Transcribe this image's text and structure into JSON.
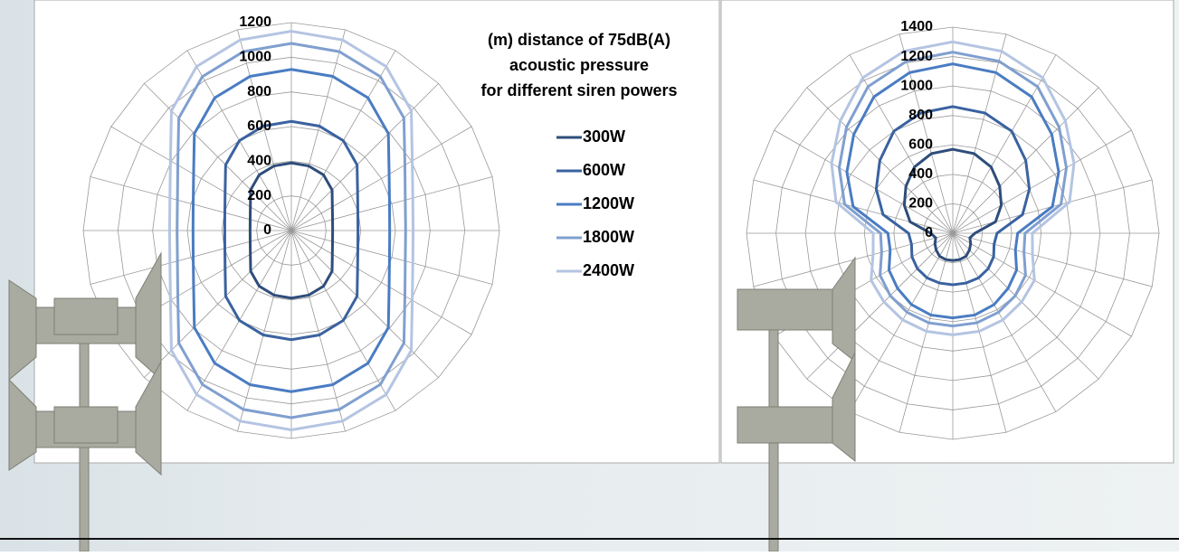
{
  "chart_data": [
    {
      "type": "radar",
      "title": [
        "(m) distance of 75dB(A)",
        "acoustic pressure",
        "for different siren powers"
      ],
      "ylim": [
        0,
        1200
      ],
      "yticks": [
        0,
        200,
        400,
        600,
        800,
        1000,
        1200
      ],
      "grid": true,
      "legend": "upper right",
      "series": [
        {
          "name": "300W",
          "color": "#2e4d7b",
          "values": [
            390,
            386,
            371,
            332,
            273,
            246,
            238,
            246,
            273,
            332,
            371,
            386,
            390,
            386,
            371,
            332,
            273,
            246,
            238,
            246,
            273,
            332,
            371,
            386
          ]
        },
        {
          "name": "600W",
          "color": "#3a62a0",
          "values": [
            630,
            624,
            599,
            536,
            441,
            397,
            384,
            397,
            441,
            536,
            599,
            624,
            630,
            624,
            599,
            536,
            441,
            397,
            384,
            397,
            441,
            536,
            599,
            624
          ]
        },
        {
          "name": "1200W",
          "color": "#4a7cc2",
          "values": [
            930,
            921,
            884,
            791,
            651,
            586,
            567,
            586,
            651,
            791,
            884,
            921,
            930,
            921,
            884,
            791,
            651,
            586,
            567,
            586,
            651,
            791,
            884,
            921
          ]
        },
        {
          "name": "1800W",
          "color": "#7f9fcf",
          "values": [
            1080,
            1069,
            1026,
            918,
            756,
            680,
            659,
            680,
            756,
            918,
            1026,
            1069,
            1080,
            1069,
            1026,
            918,
            756,
            680,
            659,
            680,
            756,
            918,
            1026,
            1069
          ]
        },
        {
          "name": "2400W",
          "color": "#b4c4e2",
          "values": [
            1150,
            1139,
            1093,
            978,
            805,
            725,
            702,
            725,
            805,
            978,
            1093,
            1139,
            1150,
            1139,
            1093,
            978,
            805,
            725,
            702,
            725,
            805,
            978,
            1093,
            1139
          ]
        }
      ]
    },
    {
      "type": "radar",
      "ylim": [
        0,
        1400
      ],
      "yticks": [
        0,
        200,
        400,
        600,
        800,
        1000,
        1200,
        1400
      ],
      "grid": true,
      "series": [
        {
          "color": "#2e4d7b",
          "values": [
            570,
            560,
            520,
            450,
            380,
            300,
            150,
            120,
            140,
            160,
            180,
            185,
            185,
            185,
            180,
            160,
            140,
            120,
            150,
            300,
            380,
            450,
            520,
            560
          ]
        },
        {
          "color": "#3a62a0",
          "values": [
            860,
            845,
            800,
            700,
            600,
            490,
            300,
            290,
            320,
            340,
            350,
            350,
            350,
            350,
            350,
            340,
            320,
            290,
            300,
            490,
            600,
            700,
            800,
            845
          ]
        },
        {
          "color": "#4a7cc2",
          "values": [
            1150,
            1130,
            1070,
            950,
            830,
            700,
            440,
            440,
            500,
            530,
            560,
            575,
            575,
            575,
            560,
            530,
            500,
            440,
            440,
            700,
            830,
            950,
            1070,
            1130
          ]
        },
        {
          "color": "#7f9fcf",
          "values": [
            1230,
            1210,
            1150,
            1020,
            890,
            760,
            490,
            500,
            570,
            600,
            620,
            630,
            630,
            630,
            620,
            600,
            570,
            500,
            490,
            760,
            890,
            1020,
            1150,
            1210
          ]
        },
        {
          "color": "#b4c4e2",
          "values": [
            1300,
            1280,
            1220,
            1080,
            950,
            820,
            540,
            560,
            640,
            660,
            680,
            690,
            690,
            690,
            680,
            660,
            640,
            560,
            540,
            820,
            950,
            1080,
            1220,
            1280
          ]
        }
      ]
    }
  ]
}
